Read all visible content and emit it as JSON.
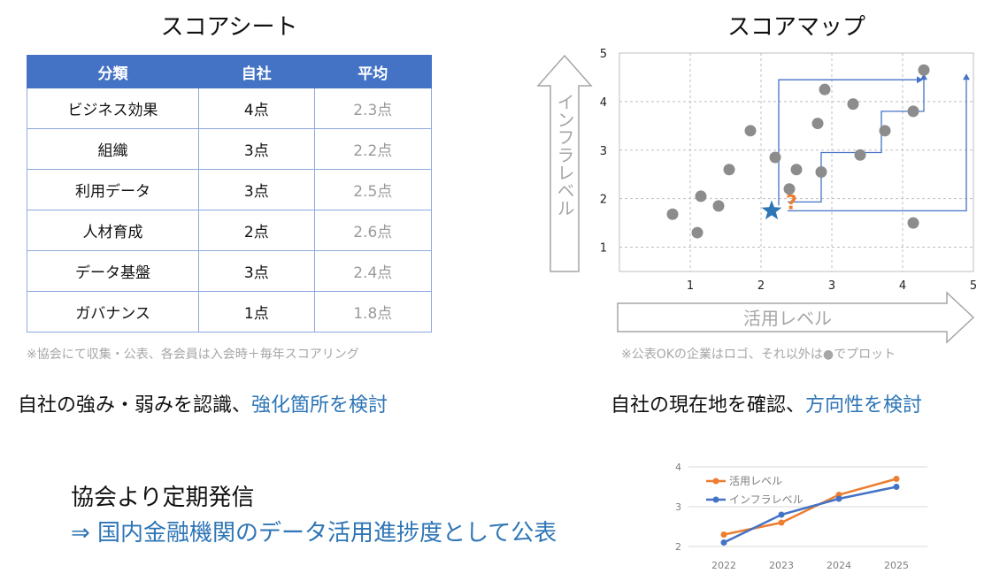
{
  "score_sheet": {
    "title": "スコアシート",
    "headers": [
      "分類",
      "自社",
      "平均"
    ],
    "rows": [
      {
        "category": "ビジネス効果",
        "own": "4点",
        "avg": "2.3点"
      },
      {
        "category": "組織",
        "own": "3点",
        "avg": "2.2点"
      },
      {
        "category": "利用データ",
        "own": "3点",
        "avg": "2.5点"
      },
      {
        "category": "人材育成",
        "own": "2点",
        "avg": "2.6点"
      },
      {
        "category": "データ基盤",
        "own": "3点",
        "avg": "2.4点"
      },
      {
        "category": "ガバナンス",
        "own": "1点",
        "avg": "1.8点"
      }
    ],
    "note": "※協会にて収集・公表、各会員は入会時＋毎年スコアリング"
  },
  "score_map": {
    "title": "スコアマップ",
    "y_axis_label": "インフラレベル",
    "x_axis_label": "活用レベル",
    "note": "※公表OKの企業はロゴ、それ以外は●でプロット",
    "question_mark": "?",
    "colors": {
      "dots": "#8c8c8c",
      "star": "#2e75b6",
      "path": "#4472c4",
      "question": "#ed7d31"
    }
  },
  "takeaways": {
    "left_black": "自社の強み・弱みを認識、",
    "left_blue": "強化箇所を検討",
    "right_black": "自社の現在地を確認、",
    "right_blue": "方向性を検討"
  },
  "bottom": {
    "line1": "協会より定期発信",
    "line2": "⇒ 国内金融機関のデータ活用進捗度として公表"
  },
  "chart_data": [
    {
      "type": "scatter",
      "title": "スコアマップ",
      "xlabel": "活用レベル",
      "ylabel": "インフラレベル",
      "xlim": [
        0,
        5
      ],
      "ylim": [
        0.5,
        5
      ],
      "x_ticks": [
        1,
        2,
        3,
        4,
        5
      ],
      "y_ticks": [
        1,
        2,
        3,
        4,
        5
      ],
      "grid": true,
      "series": [
        {
          "points": [
            {
              "x": 0.75,
              "y": 1.68
            },
            {
              "x": 1.1,
              "y": 1.3
            },
            {
              "x": 1.15,
              "y": 2.05
            },
            {
              "x": 1.4,
              "y": 1.85
            },
            {
              "x": 1.55,
              "y": 2.6
            },
            {
              "x": 1.85,
              "y": 3.4
            },
            {
              "x": 2.2,
              "y": 2.85
            },
            {
              "x": 2.4,
              "y": 2.2
            },
            {
              "x": 2.5,
              "y": 2.6
            },
            {
              "x": 2.8,
              "y": 3.55
            },
            {
              "x": 2.85,
              "y": 2.55
            },
            {
              "x": 2.9,
              "y": 4.25
            },
            {
              "x": 3.3,
              "y": 3.95
            },
            {
              "x": 3.4,
              "y": 2.9
            },
            {
              "x": 3.75,
              "y": 3.4
            },
            {
              "x": 4.15,
              "y": 3.8
            },
            {
              "x": 4.15,
              "y": 1.5
            },
            {
              "x": 4.3,
              "y": 4.65
            }
          ]
        }
      ],
      "own_company": {
        "x": 2.15,
        "y": 1.75
      }
    },
    {
      "type": "line",
      "categories": [
        "2022",
        "2023",
        "2024",
        "2025"
      ],
      "ylim": [
        2,
        4
      ],
      "y_ticks": [
        2,
        3,
        4
      ],
      "legend_position": "top-left",
      "series": [
        {
          "name": "活用レベル",
          "values": [
            2.3,
            2.6,
            3.3,
            3.7
          ],
          "color": "#ed7d31"
        },
        {
          "name": "インフラレベル",
          "values": [
            2.1,
            2.8,
            3.2,
            3.5
          ],
          "color": "#4472c4"
        }
      ]
    }
  ]
}
